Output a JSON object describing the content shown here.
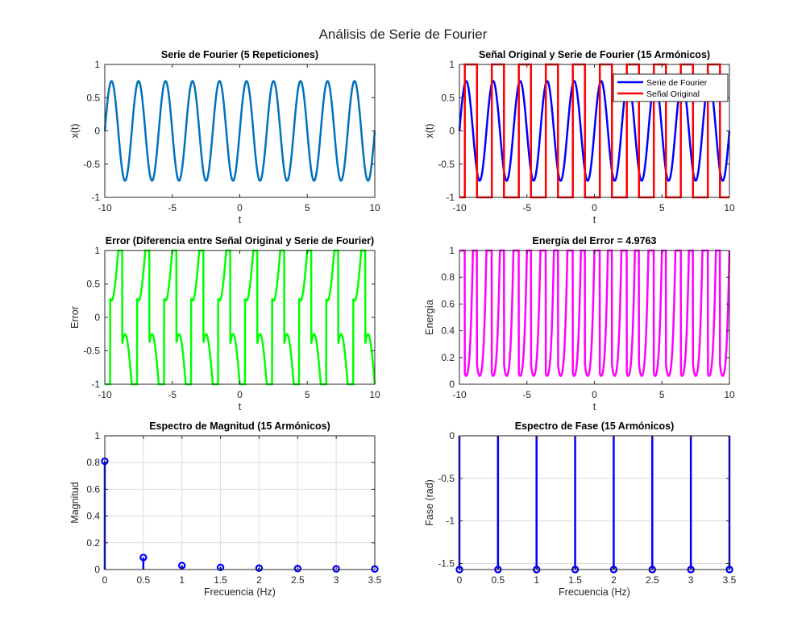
{
  "figure": {
    "suptitle": "Análisis de Serie de Fourier"
  },
  "chart_data": [
    {
      "type": "line",
      "title": "Serie de Fourier (5 Repeticiones)",
      "xlabel": "t",
      "ylabel": "x(t)",
      "xlim": [
        -10,
        10
      ],
      "ylim": [
        -1,
        1
      ],
      "xticks": [
        -10,
        -5,
        0,
        5,
        10
      ],
      "xtick_labels": [
        "-10",
        "-5",
        "0",
        "5",
        "10"
      ],
      "yticks": [
        -1,
        -0.5,
        0,
        0.5,
        1
      ],
      "ytick_labels": [
        "-1",
        "-0.5",
        "0",
        "0.5",
        "1"
      ],
      "grid": false,
      "series": [
        {
          "color": "#0072BD",
          "function": "0.75*sin(pi*t)",
          "period": 2,
          "amplitude": 0.75
        }
      ]
    },
    {
      "type": "line",
      "title": "Señal Original y Serie de Fourier (15 Armónicos)",
      "xlabel": "t",
      "ylabel": "x(t)",
      "xlim": [
        -10,
        10
      ],
      "ylim": [
        -1,
        1
      ],
      "xticks": [
        -10,
        -5,
        0,
        5,
        10
      ],
      "xtick_labels": [
        "-10",
        "-5",
        "0",
        "5",
        "10"
      ],
      "yticks": [
        -1,
        -0.5,
        0,
        0.5,
        1
      ],
      "ytick_labels": [
        "-1",
        "-0.5",
        "0",
        "0.5",
        "1"
      ],
      "grid": false,
      "legend": "top-right",
      "series": [
        {
          "name": "Serie de Fourier",
          "color": "#0000FF",
          "function": "0.75*sin(pi*t)",
          "amplitude": 0.75
        },
        {
          "name": "Señal Original",
          "color": "#FF0000",
          "function": "square wave ±1",
          "duty_cycle": 0.5,
          "edges": [
            -9.6,
            -8.7,
            -7.6,
            -6.7,
            -5.6,
            -4.7,
            -3.6,
            -2.7,
            -1.6,
            -0.7,
            0.4,
            1.3,
            2.4,
            3.3,
            4.4,
            5.3,
            6.4,
            7.3,
            8.4,
            9.3
          ]
        }
      ]
    },
    {
      "type": "line",
      "title": "Error (Diferencia entre Señal Original y Serie de Fourier)",
      "xlabel": "t",
      "ylabel": "Error",
      "xlim": [
        -10,
        10
      ],
      "ylim": [
        -1,
        1
      ],
      "xticks": [
        -10,
        -5,
        0,
        5,
        10
      ],
      "xtick_labels": [
        "-10",
        "-5",
        "0",
        "5",
        "10"
      ],
      "yticks": [
        -1,
        -0.5,
        0,
        0.5,
        1
      ],
      "ytick_labels": [
        "-1",
        "-0.5",
        "0",
        "0.5",
        "1"
      ],
      "grid": false,
      "series": [
        {
          "color": "#00FF00",
          "function": "square(t) - 0.75*sin(pi*t)"
        }
      ]
    },
    {
      "type": "line",
      "title": "Energía del Error = 4.9763",
      "xlabel": "t",
      "ylabel": "Energía",
      "xlim": [
        -10,
        10
      ],
      "ylim": [
        0,
        1
      ],
      "xticks": [
        -10,
        -5,
        0,
        5,
        10
      ],
      "xtick_labels": [
        "-10",
        "-5",
        "0",
        "5",
        "10"
      ],
      "yticks": [
        0,
        0.2,
        0.4,
        0.6,
        0.8,
        1
      ],
      "ytick_labels": [
        "0",
        "0.2",
        "0.4",
        "0.6",
        "0.8",
        "1"
      ],
      "grid": false,
      "series": [
        {
          "color": "#FF00FF",
          "function": "error(t)^2",
          "minimum": 0.0625
        }
      ]
    },
    {
      "type": "stem",
      "title": "Espectro de Magnitud (15 Armónicos)",
      "xlabel": "Frecuencia (Hz)",
      "ylabel": "Magnitud",
      "xlim": [
        0,
        3.5
      ],
      "ylim": [
        0,
        1
      ],
      "xticks": [
        0,
        0.5,
        1,
        1.5,
        2,
        2.5,
        3,
        3.5
      ],
      "xtick_labels": [
        "0",
        "0.5",
        "1",
        "1.5",
        "2",
        "2.5",
        "3",
        "3.5"
      ],
      "yticks": [
        0,
        0.2,
        0.4,
        0.6,
        0.8,
        1
      ],
      "ytick_labels": [
        "0",
        "0.2",
        "0.4",
        "0.6",
        "0.8",
        "1"
      ],
      "grid": true,
      "series": [
        {
          "color": "#0000FF",
          "x": [
            0,
            0.5,
            1,
            1.5,
            2,
            2.5,
            3,
            3.5
          ],
          "y": [
            0.81,
            0.09,
            0.03,
            0.016,
            0.01,
            0.007,
            0.005,
            0.004
          ]
        }
      ]
    },
    {
      "type": "stem",
      "title": "Espectro de Fase (15 Armónicos)",
      "xlabel": "Frecuencia (Hz)",
      "ylabel": "Fase (rad)",
      "xlim": [
        0,
        3.5
      ],
      "ylim": [
        -1.5708,
        0
      ],
      "xticks": [
        0,
        0.5,
        1,
        1.5,
        2,
        2.5,
        3,
        3.5
      ],
      "xtick_labels": [
        "0",
        "0.5",
        "1",
        "1.5",
        "2",
        "2.5",
        "3",
        "3.5"
      ],
      "yticks": [
        -1.5,
        -1,
        -0.5,
        0
      ],
      "ytick_labels": [
        "-1.5",
        "-1",
        "-0.5",
        "0"
      ],
      "grid": true,
      "series": [
        {
          "color": "#0000FF",
          "x": [
            0,
            0.5,
            1,
            1.5,
            2,
            2.5,
            3,
            3.5
          ],
          "y": [
            -1.5708,
            -1.5708,
            -1.5708,
            -1.5708,
            -1.5708,
            -1.5708,
            -1.5708,
            -1.5708
          ]
        }
      ]
    }
  ]
}
